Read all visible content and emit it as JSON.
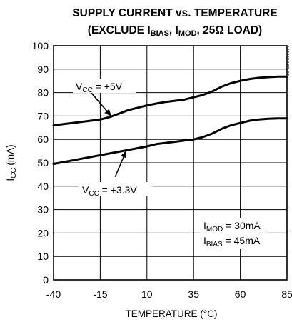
{
  "chart_data": {
    "type": "line",
    "title_line1": "SUPPLY CURRENT vs. TEMPERATURE",
    "title_line2": {
      "open": "(EXCLUDE I",
      "bias_sub": "BIAS",
      "sep1": ", I",
      "mod_sub": "MOD",
      "close": ", 25Ω LOAD)"
    },
    "xlabel": "TEMPERATURE (°C)",
    "ylabel": {
      "main": "I",
      "sub": "CC",
      "unit": " (mA)"
    },
    "xlim": [
      -40,
      85
    ],
    "ylim": [
      0,
      100
    ],
    "x_ticks": [
      -40,
      -15,
      10,
      35,
      60,
      85
    ],
    "y_ticks": [
      0,
      10,
      20,
      30,
      40,
      50,
      60,
      70,
      80,
      90,
      100
    ],
    "grid": true,
    "series": [
      {
        "name": "VCC = +5V",
        "x": [
          -40,
          -30,
          -20,
          -15,
          -10,
          -5,
          0,
          5,
          10,
          15,
          20,
          25,
          30,
          35,
          40,
          45,
          50,
          55,
          60,
          65,
          70,
          75,
          80,
          85
        ],
        "y": [
          66,
          67,
          68,
          68.5,
          69.5,
          71,
          72.5,
          73.5,
          74.5,
          75.3,
          76,
          76.5,
          77,
          78,
          79,
          80.5,
          82.5,
          84,
          85,
          85.8,
          86.3,
          86.6,
          86.8,
          86.8
        ]
      },
      {
        "name": "VCC = +3.3V",
        "x": [
          -40,
          -30,
          -20,
          -10,
          0,
          10,
          15,
          20,
          25,
          30,
          35,
          40,
          45,
          50,
          55,
          60,
          65,
          70,
          75,
          80,
          85
        ],
        "y": [
          49.5,
          51,
          52.5,
          54,
          55.5,
          57,
          58,
          58.5,
          59,
          59.5,
          60,
          61,
          62.5,
          64.5,
          66,
          67,
          68,
          68.5,
          68.8,
          69,
          69
        ]
      }
    ],
    "annotations": [
      {
        "id": "vcc5",
        "main": "V",
        "sub": "CC",
        "rest": " = +5V",
        "arrow_from": [
          -21,
          81
        ],
        "arrow_to": [
          -9,
          69.8
        ]
      },
      {
        "id": "vcc33",
        "main": "V",
        "sub": "CC",
        "rest": " = +3.3V",
        "arrow_from": [
          -7,
          44
        ],
        "arrow_to": [
          -1,
          55.3
        ]
      }
    ],
    "conditions": [
      {
        "main": "I",
        "sub": "MOD",
        "rest": " = 30mA"
      },
      {
        "main": "I",
        "sub": "BIAS",
        "rest": " = 45mA"
      }
    ],
    "watermark": "MAX3867 09"
  }
}
